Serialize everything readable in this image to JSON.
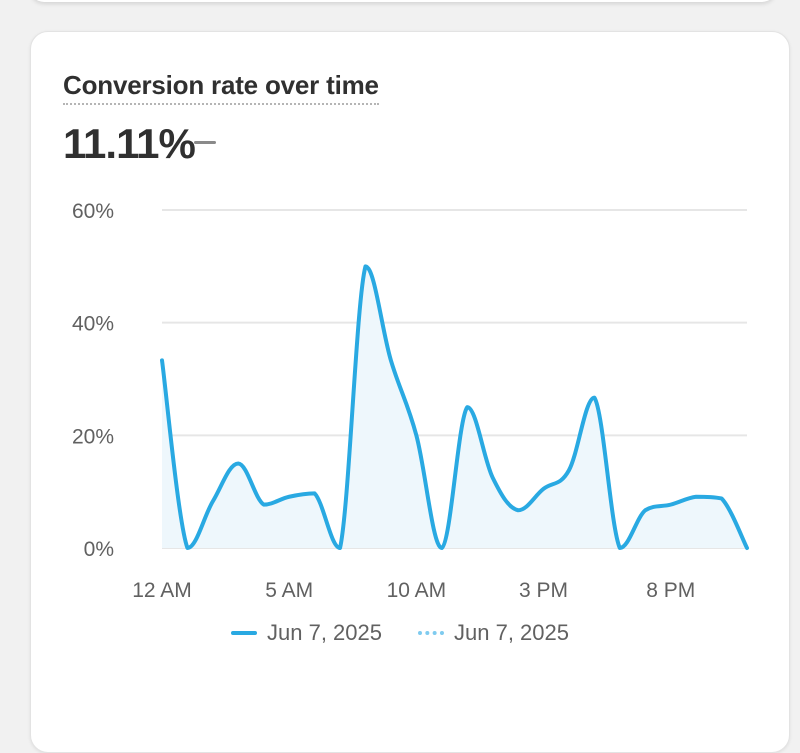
{
  "card": {
    "title": "Conversion rate over time",
    "metric_value": "11.11%",
    "metric_change": "—"
  },
  "legend": [
    {
      "label": "Jun 7, 2025",
      "style": "solid"
    },
    {
      "label": "Jun 7, 2025",
      "style": "dotted"
    }
  ],
  "colors": {
    "line": "#29a9e2",
    "fill": "#eef7fc",
    "grid": "#e6e6e6",
    "axis_text": "#616161"
  },
  "chart_data": {
    "type": "line",
    "ylim": [
      0,
      60
    ],
    "y_ticks": [
      "0%",
      "20%",
      "40%",
      "60%"
    ],
    "y_tick_values": [
      0,
      20,
      40,
      60
    ],
    "x_ticks": [
      "12 AM",
      "5 AM",
      "10 AM",
      "3 PM",
      "8 PM"
    ],
    "x_tick_hours": [
      0,
      5,
      10,
      15,
      20
    ],
    "x_range_hours": [
      0,
      23
    ],
    "series": [
      {
        "name": "Jun 7, 2025",
        "hours": [
          0,
          1,
          2,
          3,
          4,
          5,
          6,
          7,
          8,
          9,
          10,
          11,
          12,
          13,
          14,
          15,
          16,
          17,
          18,
          19,
          20,
          21,
          22,
          23
        ],
        "values": [
          33.3,
          0,
          8.3,
          15,
          7.7,
          9.1,
          9.7,
          0,
          50,
          33.3,
          20,
          0,
          25,
          12.5,
          6.7,
          10.5,
          13.8,
          26.7,
          0,
          6.7,
          7.7,
          9.1,
          8.8,
          0
        ]
      }
    ]
  }
}
